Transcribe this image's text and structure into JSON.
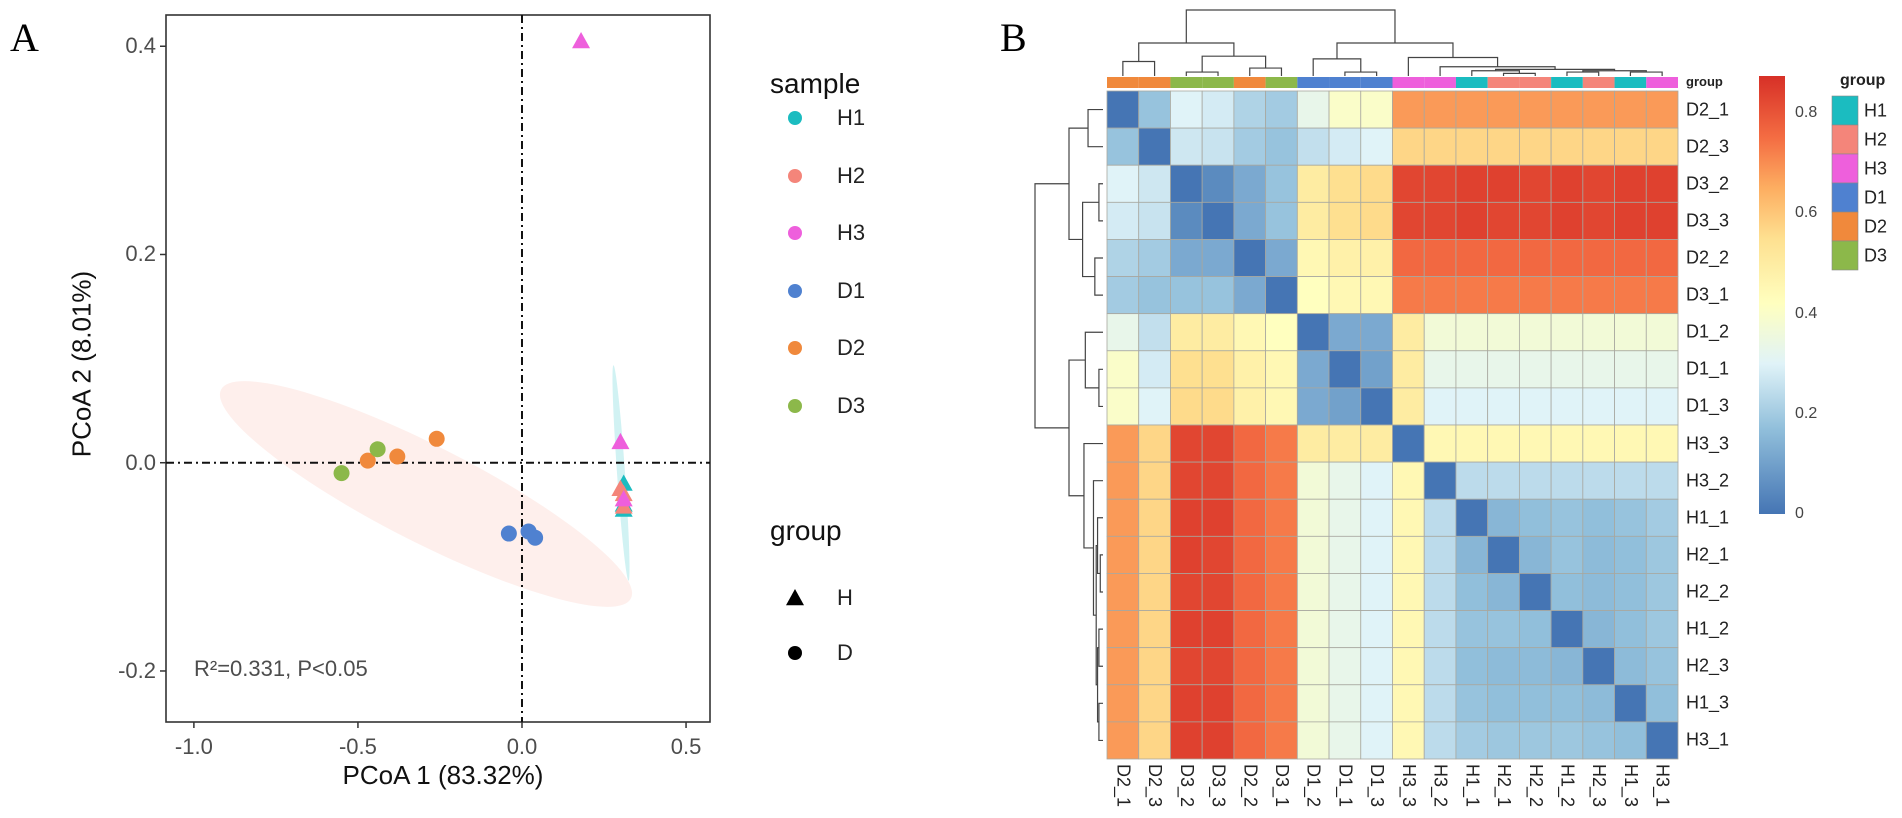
{
  "panel_labels": {
    "a": "A",
    "b": "B"
  },
  "chart_data": [
    {
      "type": "scatter",
      "title": "",
      "xlabel": "PCoA 1 (83.32%)",
      "ylabel": "PCoA 2 (8.01%)",
      "xlim": [
        -1.085,
        0.573
      ],
      "ylim": [
        -0.249,
        0.43
      ],
      "xticks": [
        {
          "value": -1.0,
          "label": "-1.0"
        },
        {
          "value": -0.5,
          "label": "-0.5"
        },
        {
          "value": 0.0,
          "label": "0.0"
        },
        {
          "value": 0.5,
          "label": "0.5"
        }
      ],
      "yticks": [
        {
          "value": 0.4,
          "label": "0.4"
        },
        {
          "value": 0.2,
          "label": "0.2"
        },
        {
          "value": 0.0,
          "label": "0.0"
        },
        {
          "value": -0.2,
          "label": "-0.2"
        }
      ],
      "reference_lines": {
        "x": 0,
        "y": 0,
        "style": "dash-dot"
      },
      "annotation": "R²=0.331, P<0.05",
      "legend": {
        "placement": "right",
        "sample_title": "sample",
        "group_title": "group",
        "groups": [
          {
            "label": "H",
            "shape": "triangle"
          },
          {
            "label": "D",
            "shape": "circle"
          }
        ]
      },
      "series": [
        {
          "name": "H1",
          "group": "H",
          "color": "#1bbcc0",
          "points": [
            [
              0.31,
              -0.02
            ],
            [
              0.31,
              -0.04
            ],
            [
              0.31,
              -0.045
            ]
          ]
        },
        {
          "name": "H2",
          "group": "H",
          "color": "#f4857a",
          "points": [
            [
              0.3,
              -0.025
            ],
            [
              0.31,
              -0.03
            ],
            [
              0.31,
              -0.042
            ]
          ]
        },
        {
          "name": "H3",
          "group": "H",
          "color": "#ee5fdc",
          "points": [
            [
              0.18,
              0.405
            ],
            [
              0.3,
              0.02
            ],
            [
              0.31,
              -0.035
            ]
          ]
        },
        {
          "name": "D1",
          "group": "D",
          "color": "#4f81d0",
          "points": [
            [
              -0.04,
              -0.068
            ],
            [
              0.02,
              -0.066
            ],
            [
              0.04,
              -0.072
            ]
          ]
        },
        {
          "name": "D2",
          "group": "D",
          "color": "#f0893c",
          "points": [
            [
              -0.47,
              0.002
            ],
            [
              -0.38,
              0.006
            ],
            [
              -0.26,
              0.023
            ]
          ]
        },
        {
          "name": "D3",
          "group": "D",
          "color": "#8cb84a",
          "points": [
            [
              -0.55,
              -0.01
            ],
            [
              -0.44,
              0.013
            ]
          ]
        }
      ]
    },
    {
      "type": "heatmap",
      "labels": [
        "D2_1",
        "D2_3",
        "D3_2",
        "D3_3",
        "D2_2",
        "D3_1",
        "D1_2",
        "D1_1",
        "D1_3",
        "H3_3",
        "H3_2",
        "H1_1",
        "H2_1",
        "H2_2",
        "H1_2",
        "H2_3",
        "H1_3",
        "H3_1"
      ],
      "label_groups": [
        "D2",
        "D2",
        "D3",
        "D3",
        "D2",
        "D3",
        "D1",
        "D1",
        "D1",
        "H3",
        "H3",
        "H1",
        "H2",
        "H2",
        "H1",
        "H2",
        "H1",
        "H3"
      ],
      "annotation_label": "group",
      "values": [
        [
          0,
          0.18,
          0.3,
          0.28,
          0.22,
          0.2,
          0.33,
          0.4,
          0.4,
          0.68,
          0.68,
          0.68,
          0.68,
          0.68,
          0.68,
          0.68,
          0.68,
          0.68
        ],
        [
          0.18,
          0,
          0.27,
          0.26,
          0.2,
          0.18,
          0.25,
          0.28,
          0.3,
          0.57,
          0.57,
          0.57,
          0.57,
          0.57,
          0.57,
          0.57,
          0.57,
          0.57
        ],
        [
          0.3,
          0.27,
          0,
          0.05,
          0.12,
          0.18,
          0.5,
          0.55,
          0.56,
          0.83,
          0.83,
          0.84,
          0.84,
          0.83,
          0.84,
          0.83,
          0.84,
          0.84
        ],
        [
          0.28,
          0.26,
          0.05,
          0,
          0.12,
          0.18,
          0.5,
          0.55,
          0.56,
          0.83,
          0.83,
          0.84,
          0.83,
          0.83,
          0.84,
          0.83,
          0.84,
          0.84
        ],
        [
          0.22,
          0.2,
          0.12,
          0.12,
          0,
          0.12,
          0.45,
          0.48,
          0.48,
          0.76,
          0.76,
          0.76,
          0.76,
          0.76,
          0.76,
          0.76,
          0.76,
          0.76
        ],
        [
          0.2,
          0.18,
          0.18,
          0.18,
          0.12,
          0,
          0.42,
          0.45,
          0.45,
          0.73,
          0.73,
          0.73,
          0.73,
          0.73,
          0.73,
          0.73,
          0.73,
          0.73
        ],
        [
          0.33,
          0.25,
          0.5,
          0.5,
          0.45,
          0.42,
          0,
          0.12,
          0.12,
          0.5,
          0.37,
          0.37,
          0.37,
          0.37,
          0.37,
          0.37,
          0.37,
          0.37
        ],
        [
          0.4,
          0.28,
          0.55,
          0.55,
          0.48,
          0.45,
          0.12,
          0,
          0.1,
          0.5,
          0.33,
          0.33,
          0.33,
          0.33,
          0.33,
          0.33,
          0.33,
          0.33
        ],
        [
          0.4,
          0.3,
          0.56,
          0.56,
          0.48,
          0.45,
          0.12,
          0.1,
          0,
          0.5,
          0.3,
          0.3,
          0.3,
          0.3,
          0.3,
          0.3,
          0.3,
          0.3
        ],
        [
          0.68,
          0.57,
          0.83,
          0.83,
          0.76,
          0.73,
          0.5,
          0.5,
          0.5,
          0,
          0.45,
          0.45,
          0.45,
          0.45,
          0.45,
          0.45,
          0.45,
          0.45
        ],
        [
          0.68,
          0.57,
          0.83,
          0.83,
          0.76,
          0.73,
          0.37,
          0.33,
          0.3,
          0.45,
          0,
          0.24,
          0.24,
          0.24,
          0.24,
          0.24,
          0.24,
          0.24
        ],
        [
          0.68,
          0.57,
          0.84,
          0.84,
          0.76,
          0.73,
          0.37,
          0.33,
          0.3,
          0.45,
          0.24,
          0,
          0.15,
          0.17,
          0.18,
          0.17,
          0.18,
          0.2
        ],
        [
          0.68,
          0.57,
          0.84,
          0.83,
          0.76,
          0.73,
          0.37,
          0.33,
          0.3,
          0.45,
          0.24,
          0.15,
          0,
          0.15,
          0.18,
          0.16,
          0.17,
          0.19
        ],
        [
          0.68,
          0.57,
          0.83,
          0.83,
          0.76,
          0.73,
          0.37,
          0.33,
          0.3,
          0.45,
          0.24,
          0.17,
          0.15,
          0,
          0.17,
          0.16,
          0.17,
          0.19
        ],
        [
          0.68,
          0.57,
          0.84,
          0.84,
          0.76,
          0.73,
          0.37,
          0.33,
          0.3,
          0.45,
          0.24,
          0.18,
          0.18,
          0.17,
          0,
          0.15,
          0.17,
          0.19
        ],
        [
          0.68,
          0.57,
          0.83,
          0.83,
          0.76,
          0.73,
          0.37,
          0.33,
          0.3,
          0.45,
          0.24,
          0.17,
          0.16,
          0.16,
          0.15,
          0,
          0.16,
          0.18
        ],
        [
          0.68,
          0.57,
          0.84,
          0.84,
          0.76,
          0.73,
          0.37,
          0.33,
          0.3,
          0.45,
          0.24,
          0.18,
          0.17,
          0.17,
          0.17,
          0.16,
          0,
          0.17
        ],
        [
          0.68,
          0.57,
          0.84,
          0.84,
          0.76,
          0.73,
          0.37,
          0.33,
          0.3,
          0.45,
          0.24,
          0.2,
          0.19,
          0.19,
          0.19,
          0.18,
          0.17,
          0
        ]
      ],
      "colorbar": {
        "range": [
          0,
          0.874
        ],
        "ticks": [
          {
            "value": 0.8,
            "label": "0.8"
          },
          {
            "value": 0.6,
            "label": "0.6"
          },
          {
            "value": 0.4,
            "label": "0.4"
          },
          {
            "value": 0.2,
            "label": "0.2"
          },
          {
            "value": 0,
            "label": "0"
          }
        ],
        "stops": [
          [
            0,
            "#4575b4"
          ],
          [
            0.17,
            "#91bfdb"
          ],
          [
            0.3,
            "#e0f3f8"
          ],
          [
            0.42,
            "#ffffbf"
          ],
          [
            0.55,
            "#fee090"
          ],
          [
            0.65,
            "#fdae61"
          ],
          [
            0.75,
            "#f46d43"
          ],
          [
            0.874,
            "#d73027"
          ]
        ]
      },
      "group_legend": {
        "title": "group",
        "items": [
          {
            "label": "H1",
            "color": "#1bbcc0"
          },
          {
            "label": "H2",
            "color": "#f4857a"
          },
          {
            "label": "H3",
            "color": "#ee5fdc"
          },
          {
            "label": "D1",
            "color": "#4f81d0"
          },
          {
            "label": "D2",
            "color": "#f0893c"
          },
          {
            "label": "D3",
            "color": "#8cb84a"
          }
        ]
      }
    }
  ]
}
